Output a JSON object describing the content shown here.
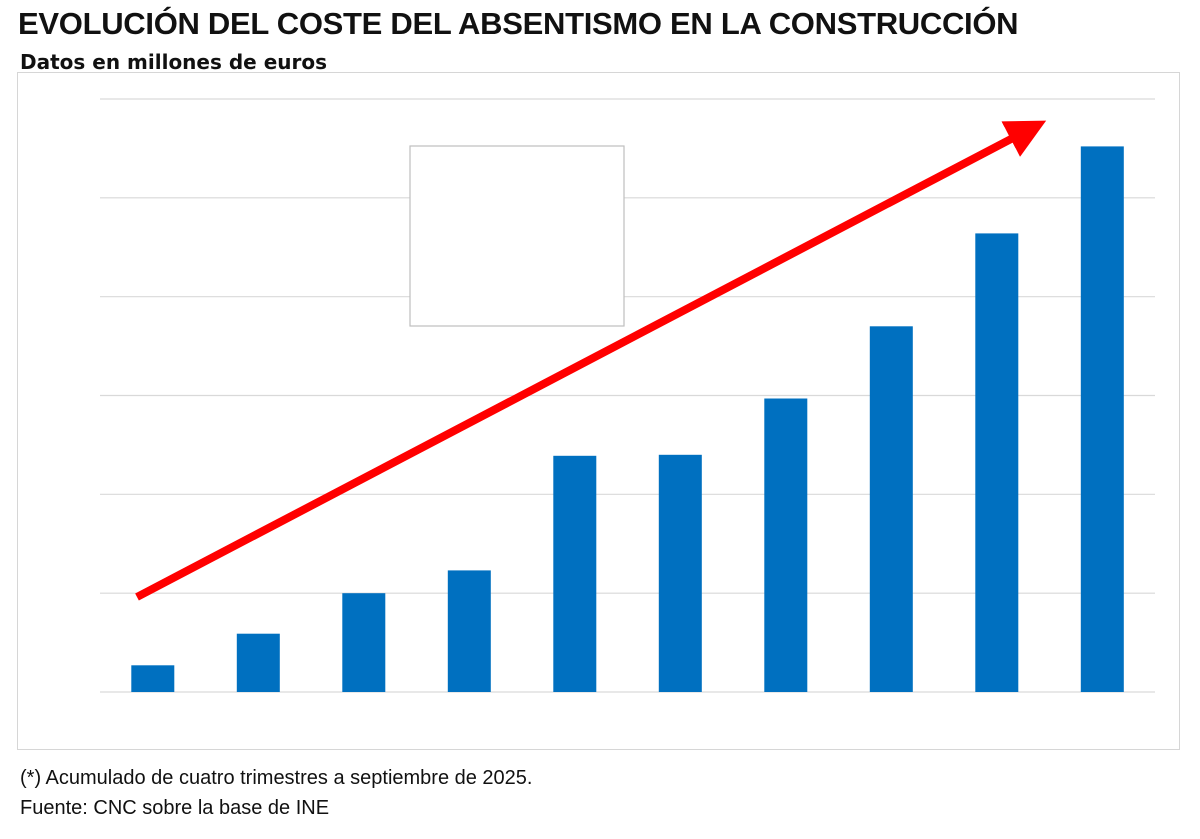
{
  "chart_data": {
    "type": "bar",
    "title": "EVOLUCIÓN DEL COSTE DEL ABSENTISMO EN LA CONSTRUCCIÓN",
    "subtitle": "Datos en millones de euros",
    "xlabel": "",
    "ylabel": "",
    "categories": [
      "",
      "",
      "",
      "",
      "",
      "",
      "",
      "",
      "",
      ""
    ],
    "values": [
      0.27,
      0.59,
      1.0,
      1.23,
      2.39,
      2.4,
      2.97,
      3.7,
      4.64,
      5.52
    ],
    "ylim": [
      0,
      6
    ],
    "grid": true,
    "legend": "none",
    "bar_color": "#0070c0",
    "arrow_color": "#ff0000",
    "annotation": "upward trend arrow",
    "footnote": "(*) Acumulado de cuatro trimestres a septiembre de 2025.",
    "source": "Fuente: CNC sobre la base de INE"
  }
}
